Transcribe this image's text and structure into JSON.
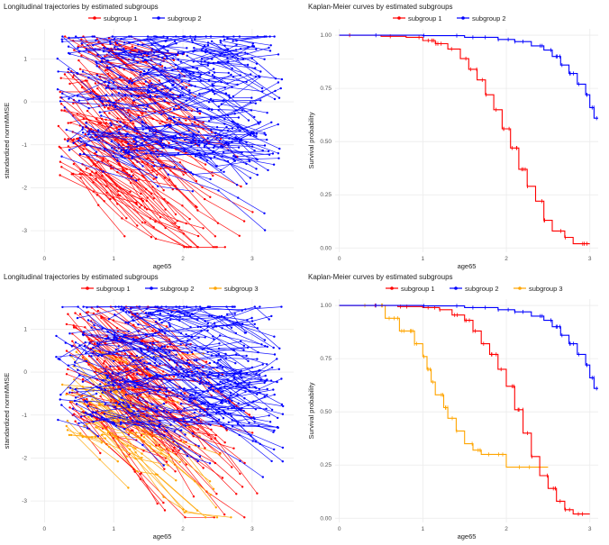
{
  "colors": {
    "subgroup1": "#ff0000",
    "subgroup2": "#0000ff",
    "subgroup3": "#ffa500",
    "grid": "#ebebeb",
    "text": "#222222"
  },
  "chart_data": [
    {
      "id": "traj2",
      "type": "line",
      "title": "Longitudinal trajectories by estimated subgroups",
      "xlabel": "age65",
      "ylabel": "standardized normMMSE",
      "xlim": [
        -0.2,
        3.6
      ],
      "ylim": [
        -3.5,
        1.7
      ],
      "xticks": [
        0,
        1,
        2,
        3
      ],
      "yticks": [
        -3,
        -2,
        -1,
        0,
        1
      ],
      "legend": [
        {
          "name": "subgroup 1",
          "color": "#ff0000"
        },
        {
          "name": "subgroup 2",
          "color": "#0000ff"
        }
      ],
      "series": [
        {
          "name": "subgroup 1",
          "color": "#ff0000",
          "count": 150,
          "seed": 11,
          "start_x": [
            0.2,
            1.3
          ],
          "start_y": [
            -1.8,
            1.6
          ],
          "slope": [
            -1.8,
            -0.5
          ]
        },
        {
          "name": "subgroup 2",
          "color": "#0000ff",
          "count": 240,
          "seed": 23,
          "start_x": [
            0.15,
            2.8
          ],
          "start_y": [
            -1.3,
            1.6
          ],
          "slope": [
            -0.9,
            0.4
          ]
        }
      ]
    },
    {
      "id": "km2",
      "type": "line",
      "title": "Kaplan-Meier curves by estimated subgroups",
      "xlabel": "age65",
      "ylabel": "Survival probability",
      "xlim": [
        -0.05,
        3.1
      ],
      "ylim": [
        -0.02,
        1.03
      ],
      "xticks": [
        0,
        1,
        2,
        3
      ],
      "yticks": [
        0.0,
        0.25,
        0.5,
        0.75,
        1.0
      ],
      "ytick_labels": [
        "0.00",
        "0.25",
        "0.50",
        "0.75",
        "1.00"
      ],
      "legend": [
        {
          "name": "subgroup 1",
          "color": "#ff0000"
        },
        {
          "name": "subgroup 2",
          "color": "#0000ff"
        }
      ],
      "series": [
        {
          "name": "subgroup 1",
          "color": "#ff0000",
          "points": [
            [
              0,
              1.0
            ],
            [
              0.5,
              0.995
            ],
            [
              0.8,
              0.99
            ],
            [
              1.0,
              0.975
            ],
            [
              1.15,
              0.96
            ],
            [
              1.3,
              0.935
            ],
            [
              1.45,
              0.89
            ],
            [
              1.55,
              0.84
            ],
            [
              1.65,
              0.79
            ],
            [
              1.75,
              0.72
            ],
            [
              1.85,
              0.65
            ],
            [
              1.95,
              0.56
            ],
            [
              2.05,
              0.47
            ],
            [
              2.15,
              0.37
            ],
            [
              2.25,
              0.29
            ],
            [
              2.35,
              0.22
            ],
            [
              2.45,
              0.13
            ],
            [
              2.55,
              0.08
            ],
            [
              2.7,
              0.05
            ],
            [
              2.8,
              0.02
            ],
            [
              3.0,
              0.02
            ]
          ]
        },
        {
          "name": "subgroup 2",
          "color": "#0000ff",
          "points": [
            [
              0,
              1.0
            ],
            [
              1.0,
              0.998
            ],
            [
              1.5,
              0.99
            ],
            [
              1.9,
              0.98
            ],
            [
              2.1,
              0.97
            ],
            [
              2.3,
              0.95
            ],
            [
              2.45,
              0.93
            ],
            [
              2.55,
              0.9
            ],
            [
              2.65,
              0.86
            ],
            [
              2.75,
              0.82
            ],
            [
              2.85,
              0.77
            ],
            [
              2.95,
              0.72
            ],
            [
              3.0,
              0.66
            ],
            [
              3.05,
              0.61
            ],
            [
              3.1,
              0.61
            ]
          ]
        }
      ]
    },
    {
      "id": "traj3",
      "type": "line",
      "title": "Longitudinal trajectories by estimated subgroups",
      "xlabel": "age65",
      "ylabel": "standardized normMMSE",
      "xlim": [
        -0.2,
        3.6
      ],
      "ylim": [
        -3.5,
        1.7
      ],
      "xticks": [
        0,
        1,
        2,
        3
      ],
      "yticks": [
        -3,
        -2,
        -1,
        0,
        1
      ],
      "legend": [
        {
          "name": "subgroup 1",
          "color": "#ff0000"
        },
        {
          "name": "subgroup 2",
          "color": "#0000ff"
        },
        {
          "name": "subgroup 3",
          "color": "#ffa500"
        }
      ],
      "series": [
        {
          "name": "subgroup 1",
          "color": "#ff0000",
          "count": 130,
          "seed": 31,
          "start_x": [
            0.3,
            1.4
          ],
          "start_y": [
            -1.2,
            1.6
          ],
          "slope": [
            -1.8,
            -0.6
          ]
        },
        {
          "name": "subgroup 3",
          "color": "#ffa500",
          "count": 45,
          "seed": 47,
          "start_x": [
            0.2,
            1.0
          ],
          "start_y": [
            -1.5,
            0.5
          ],
          "slope": [
            -1.5,
            -0.3
          ]
        },
        {
          "name": "subgroup 2",
          "color": "#0000ff",
          "count": 230,
          "seed": 53,
          "start_x": [
            0.15,
            2.8
          ],
          "start_y": [
            -1.3,
            1.6
          ],
          "slope": [
            -0.9,
            0.4
          ]
        }
      ]
    },
    {
      "id": "km3",
      "type": "line",
      "title": "Kaplan-Meier curves by estimated subgroups",
      "xlabel": "age65",
      "ylabel": "Survival probability",
      "xlim": [
        -0.05,
        3.1
      ],
      "ylim": [
        -0.02,
        1.03
      ],
      "xticks": [
        0,
        1,
        2,
        3
      ],
      "yticks": [
        0.0,
        0.25,
        0.5,
        0.75,
        1.0
      ],
      "ytick_labels": [
        "0.00",
        "0.25",
        "0.50",
        "0.75",
        "1.00"
      ],
      "legend": [
        {
          "name": "subgroup 1",
          "color": "#ff0000"
        },
        {
          "name": "subgroup 2",
          "color": "#0000ff"
        },
        {
          "name": "subgroup 3",
          "color": "#ffa500"
        }
      ],
      "series": [
        {
          "name": "subgroup 3",
          "color": "#ffa500",
          "points": [
            [
              0,
              1.0
            ],
            [
              0.5,
              1.0
            ],
            [
              0.55,
              0.94
            ],
            [
              0.7,
              0.94
            ],
            [
              0.72,
              0.88
            ],
            [
              0.85,
              0.88
            ],
            [
              0.9,
              0.82
            ],
            [
              1.0,
              0.76
            ],
            [
              1.05,
              0.7
            ],
            [
              1.1,
              0.64
            ],
            [
              1.15,
              0.58
            ],
            [
              1.25,
              0.52
            ],
            [
              1.3,
              0.47
            ],
            [
              1.4,
              0.41
            ],
            [
              1.5,
              0.35
            ],
            [
              1.6,
              0.32
            ],
            [
              1.7,
              0.3
            ],
            [
              1.9,
              0.3
            ],
            [
              2.0,
              0.24
            ],
            [
              2.5,
              0.24
            ]
          ]
        },
        {
          "name": "subgroup 1",
          "color": "#ff0000",
          "points": [
            [
              0,
              1.0
            ],
            [
              0.7,
              0.995
            ],
            [
              1.0,
              0.99
            ],
            [
              1.2,
              0.98
            ],
            [
              1.35,
              0.955
            ],
            [
              1.5,
              0.93
            ],
            [
              1.6,
              0.88
            ],
            [
              1.7,
              0.82
            ],
            [
              1.8,
              0.77
            ],
            [
              1.9,
              0.7
            ],
            [
              2.0,
              0.62
            ],
            [
              2.1,
              0.51
            ],
            [
              2.2,
              0.4
            ],
            [
              2.3,
              0.29
            ],
            [
              2.4,
              0.2
            ],
            [
              2.5,
              0.14
            ],
            [
              2.6,
              0.08
            ],
            [
              2.7,
              0.04
            ],
            [
              2.8,
              0.02
            ],
            [
              3.0,
              0.02
            ]
          ]
        },
        {
          "name": "subgroup 2",
          "color": "#0000ff",
          "points": [
            [
              0,
              1.0
            ],
            [
              1.0,
              0.998
            ],
            [
              1.5,
              0.99
            ],
            [
              1.9,
              0.98
            ],
            [
              2.1,
              0.97
            ],
            [
              2.3,
              0.95
            ],
            [
              2.45,
              0.93
            ],
            [
              2.55,
              0.9
            ],
            [
              2.65,
              0.86
            ],
            [
              2.75,
              0.82
            ],
            [
              2.85,
              0.77
            ],
            [
              2.95,
              0.72
            ],
            [
              3.0,
              0.66
            ],
            [
              3.05,
              0.61
            ],
            [
              3.1,
              0.61
            ]
          ]
        }
      ]
    }
  ]
}
